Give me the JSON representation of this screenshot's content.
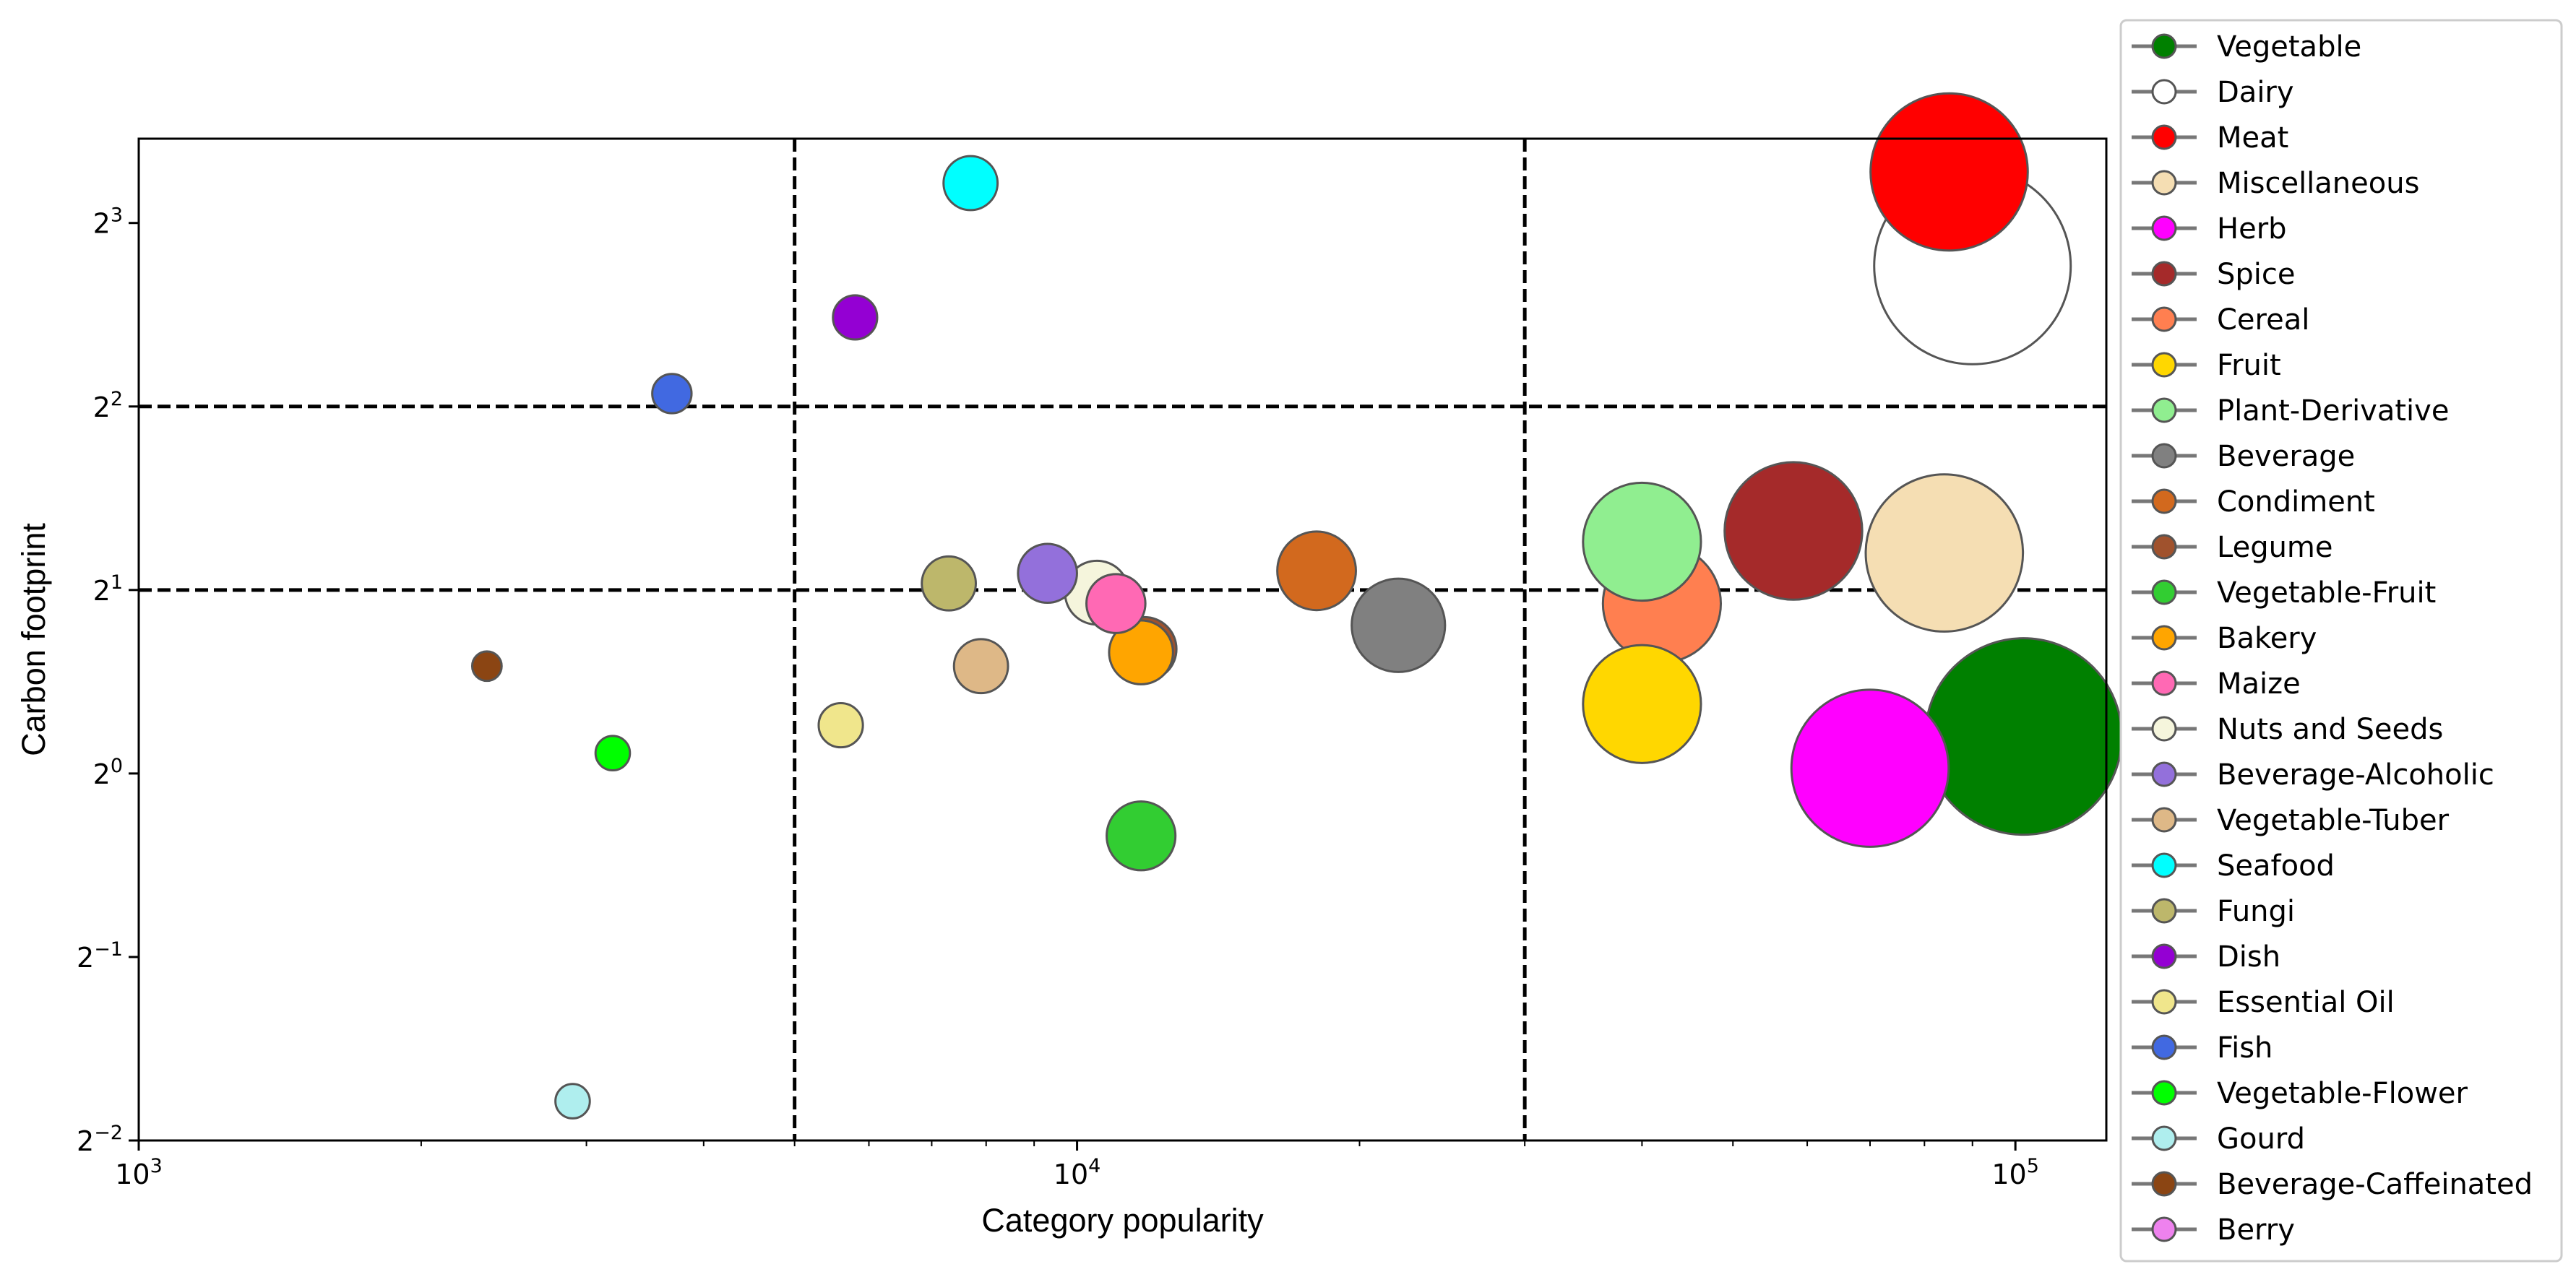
{
  "chart_data": {
    "type": "scatter",
    "xlabel": "Category popularity",
    "ylabel": "Carbon footprint",
    "xscale": "log10",
    "yscale": "log2",
    "xlim": [
      1000,
      125000
    ],
    "ylim": [
      0.25,
      11
    ],
    "x_ticks": [
      {
        "base": "10",
        "exp": "3",
        "value": 1000
      },
      {
        "base": "10",
        "exp": "4",
        "value": 10000
      },
      {
        "base": "10",
        "exp": "5",
        "value": 100000
      }
    ],
    "y_ticks": [
      {
        "base": "2",
        "exp": "−2",
        "value": 0.25
      },
      {
        "base": "2",
        "exp": "−1",
        "value": 0.5
      },
      {
        "base": "2",
        "exp": "0",
        "value": 1
      },
      {
        "base": "2",
        "exp": "1",
        "value": 2
      },
      {
        "base": "2",
        "exp": "2",
        "value": 4
      },
      {
        "base": "2",
        "exp": "3",
        "value": 8
      }
    ],
    "vlines": [
      5000,
      30000
    ],
    "hlines": [
      2,
      4
    ],
    "grid": false,
    "legend_position": "outside-right",
    "series": [
      {
        "name": "Vegetable",
        "color": "#008000",
        "x": 102000,
        "y": 1.15,
        "size": 2.0
      },
      {
        "name": "Dairy",
        "color": "#ffffff",
        "x": 90000,
        "y": 6.8,
        "size": 2.0
      },
      {
        "name": "Meat",
        "color": "#ff0000",
        "x": 85000,
        "y": 9.7,
        "size": 1.6
      },
      {
        "name": "Miscellaneous",
        "color": "#f5deb3",
        "x": 84000,
        "y": 2.3,
        "size": 1.6
      },
      {
        "name": "Herb",
        "color": "#ff00ff",
        "x": 70000,
        "y": 1.02,
        "size": 1.6
      },
      {
        "name": "Spice",
        "color": "#a52a2a",
        "x": 58000,
        "y": 2.5,
        "size": 1.4
      },
      {
        "name": "Cereal",
        "color": "#ff7f50",
        "x": 42000,
        "y": 1.9,
        "size": 1.2
      },
      {
        "name": "Fruit",
        "color": "#ffd700",
        "x": 40000,
        "y": 1.3,
        "size": 1.2
      },
      {
        "name": "Plant-Derivative",
        "color": "#90ee90",
        "x": 40000,
        "y": 2.4,
        "size": 1.2
      },
      {
        "name": "Beverage",
        "color": "#808080",
        "x": 22000,
        "y": 1.75,
        "size": 0.95
      },
      {
        "name": "Condiment",
        "color": "#d2691e",
        "x": 18000,
        "y": 2.15,
        "size": 0.8
      },
      {
        "name": "Legume",
        "color": "#a0522d",
        "x": 11800,
        "y": 1.6,
        "size": 0.65
      },
      {
        "name": "Vegetable-Fruit",
        "color": "#32cd32",
        "x": 11700,
        "y": 0.79,
        "size": 0.7
      },
      {
        "name": "Bakery",
        "color": "#ffa500",
        "x": 11700,
        "y": 1.58,
        "size": 0.65
      },
      {
        "name": "Maize",
        "color": "#ff69b4",
        "x": 11000,
        "y": 1.9,
        "size": 0.6
      },
      {
        "name": "Nuts and Seeds",
        "color": "#f5f5dc",
        "x": 10500,
        "y": 1.98,
        "size": 0.65
      },
      {
        "name": "Beverage-Alcoholic",
        "color": "#9370db",
        "x": 9300,
        "y": 2.13,
        "size": 0.6
      },
      {
        "name": "Vegetable-Tuber",
        "color": "#deb887",
        "x": 7900,
        "y": 1.5,
        "size": 0.55
      },
      {
        "name": "Seafood",
        "color": "#00ffff",
        "x": 7700,
        "y": 9.3,
        "size": 0.55
      },
      {
        "name": "Fungi",
        "color": "#bdb76b",
        "x": 7300,
        "y": 2.05,
        "size": 0.55
      },
      {
        "name": "Dish",
        "color": "#9400d3",
        "x": 5800,
        "y": 5.6,
        "size": 0.45
      },
      {
        "name": "Essential Oil",
        "color": "#f0e68c",
        "x": 5600,
        "y": 1.2,
        "size": 0.45
      },
      {
        "name": "Fish",
        "color": "#4169e1",
        "x": 3700,
        "y": 4.2,
        "size": 0.4
      },
      {
        "name": "Vegetable-Flower",
        "color": "#00ff00",
        "x": 3200,
        "y": 1.08,
        "size": 0.35
      },
      {
        "name": "Gourd",
        "color": "#afeeee",
        "x": 2900,
        "y": 0.29,
        "size": 0.35
      },
      {
        "name": "Beverage-Caffeinated",
        "color": "#8b4513",
        "x": 2350,
        "y": 1.5,
        "size": 0.3
      },
      {
        "name": "Berry",
        "color": "#ee82ee",
        "x": null,
        "y": null,
        "size": 0.3
      }
    ]
  }
}
